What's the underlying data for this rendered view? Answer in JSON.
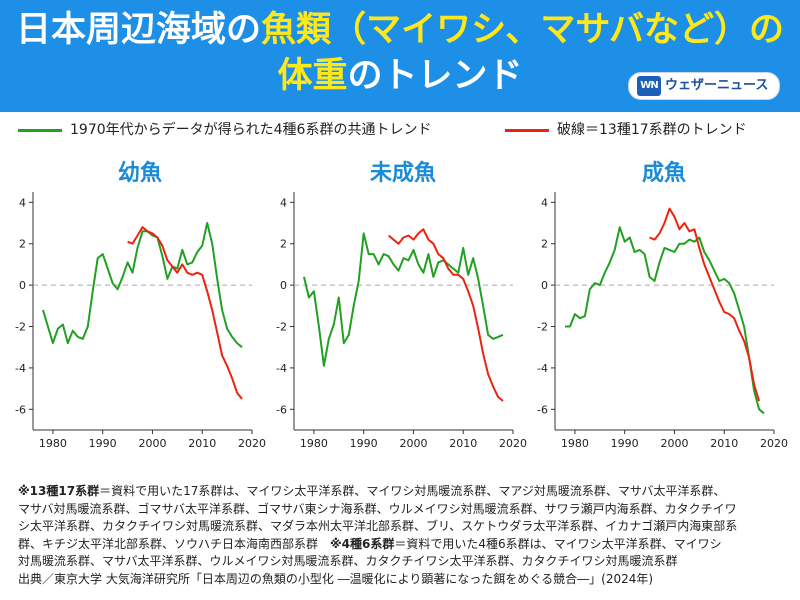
{
  "header": {
    "title_line1_part1": "日本周辺海域の",
    "title_line1_part2": "魚類",
    "title_line1_part3": "（マイワシ、マサバなど）の",
    "title_line2_part1": "体重",
    "title_line2_part2": "のトレンド",
    "logo_mark": "WN",
    "logo_text": "ウェザーニュース"
  },
  "legend": {
    "green_label": "1970年代からデータが得られた4種6系群の共通トレンド",
    "red_label": "破線＝13種17系群のトレンド"
  },
  "colors": {
    "header_bg": "#1e8fe6",
    "title_highlight": "#ffe81a",
    "chart_title": "#1a8ad9",
    "green": "#22a022",
    "red": "#ee2211",
    "zero_line": "#aaaaaa"
  },
  "chart_data": [
    {
      "type": "line",
      "title": "幼魚",
      "xlim": [
        1976,
        2020
      ],
      "ylim": [
        -7,
        4.5
      ],
      "xticks": [
        "1980",
        "1990",
        "2000",
        "2010",
        "2020"
      ],
      "yticks": [
        "4",
        "2",
        "0",
        "-2",
        "-4",
        "-6"
      ],
      "zero_line": "dashed",
      "series": [
        {
          "color": "green",
          "x": [
            1978,
            1979,
            1980,
            1981,
            1982,
            1983,
            1984,
            1985,
            1986,
            1987,
            1988,
            1989,
            1990,
            1991,
            1992,
            1993,
            1994,
            1995,
            1996,
            1997,
            1998,
            1999,
            2000,
            2001,
            2002,
            2003,
            2004,
            2005,
            2006,
            2007,
            2008,
            2009,
            2010,
            2011,
            2012,
            2013,
            2014,
            2015,
            2016,
            2017,
            2018
          ],
          "y": [
            -1.2,
            -2.0,
            -2.8,
            -2.1,
            -1.9,
            -2.8,
            -2.2,
            -2.5,
            -2.6,
            -2.0,
            -0.3,
            1.3,
            1.5,
            0.8,
            0.1,
            -0.2,
            0.4,
            1.1,
            0.6,
            1.8,
            2.6,
            2.6,
            2.4,
            2.3,
            1.4,
            0.3,
            0.9,
            0.8,
            1.7,
            1.0,
            1.1,
            1.6,
            1.9,
            3.0,
            2.0,
            0.3,
            -1.2,
            -2.1,
            -2.5,
            -2.8,
            -3.0
          ]
        },
        {
          "color": "red",
          "x": [
            1995,
            1996,
            1997,
            1998,
            1999,
            2000,
            2001,
            2002,
            2003,
            2004,
            2005,
            2006,
            2007,
            2008,
            2009,
            2010,
            2011,
            2012,
            2013,
            2014,
            2015,
            2016,
            2017,
            2018
          ],
          "y": [
            2.1,
            2.0,
            2.4,
            2.8,
            2.6,
            2.5,
            2.3,
            1.9,
            1.2,
            0.9,
            0.6,
            1.0,
            0.6,
            0.5,
            0.6,
            0.5,
            -0.3,
            -1.2,
            -2.3,
            -3.4,
            -3.9,
            -4.5,
            -5.2,
            -5.5
          ]
        }
      ]
    },
    {
      "type": "line",
      "title": "未成魚",
      "xlim": [
        1976,
        2020
      ],
      "ylim": [
        -7,
        4.5
      ],
      "xticks": [
        "1980",
        "1990",
        "2000",
        "2010",
        "2020"
      ],
      "yticks": [
        "4",
        "2",
        "0",
        "-2",
        "-4",
        "-6"
      ],
      "zero_line": "dashed",
      "series": [
        {
          "color": "green",
          "x": [
            1978,
            1979,
            1980,
            1981,
            1982,
            1983,
            1984,
            1985,
            1986,
            1987,
            1988,
            1989,
            1990,
            1991,
            1992,
            1993,
            1994,
            1995,
            1996,
            1997,
            1998,
            1999,
            2000,
            2001,
            2002,
            2003,
            2004,
            2005,
            2006,
            2007,
            2008,
            2009,
            2010,
            2011,
            2012,
            2013,
            2014,
            2015,
            2016,
            2017,
            2018
          ],
          "y": [
            0.4,
            -0.6,
            -0.3,
            -2.0,
            -3.9,
            -2.6,
            -1.9,
            -0.6,
            -2.8,
            -2.4,
            -1.0,
            0.2,
            2.5,
            1.5,
            1.5,
            1.0,
            1.5,
            1.4,
            1.0,
            0.7,
            1.3,
            1.2,
            1.7,
            1.0,
            0.6,
            1.5,
            0.4,
            1.1,
            1.2,
            1.0,
            0.8,
            0.6,
            1.8,
            0.5,
            1.3,
            0.3,
            -1.0,
            -2.4,
            -2.6,
            -2.5,
            -2.4
          ]
        },
        {
          "color": "red",
          "x": [
            1995,
            1996,
            1997,
            1998,
            1999,
            2000,
            2001,
            2002,
            2003,
            2004,
            2005,
            2006,
            2007,
            2008,
            2009,
            2010,
            2011,
            2012,
            2013,
            2014,
            2015,
            2016,
            2017,
            2018
          ],
          "y": [
            2.4,
            2.2,
            2.0,
            2.3,
            2.4,
            2.2,
            2.5,
            2.7,
            2.2,
            2.0,
            1.5,
            1.3,
            0.8,
            0.5,
            0.5,
            0.3,
            -0.3,
            -1.0,
            -2.1,
            -3.3,
            -4.3,
            -4.9,
            -5.4,
            -5.6
          ]
        }
      ]
    },
    {
      "type": "line",
      "title": "成魚",
      "xlim": [
        1976,
        2020
      ],
      "ylim": [
        -7,
        4.5
      ],
      "xticks": [
        "1980",
        "1990",
        "2000",
        "2010",
        "2020"
      ],
      "yticks": [
        "4",
        "2",
        "0",
        "-2",
        "-4",
        "-6"
      ],
      "zero_line": "dashed",
      "series": [
        {
          "color": "green",
          "x": [
            1978,
            1979,
            1980,
            1981,
            1982,
            1983,
            1984,
            1985,
            1986,
            1987,
            1988,
            1989,
            1990,
            1991,
            1992,
            1993,
            1994,
            1995,
            1996,
            1997,
            1998,
            1999,
            2000,
            2001,
            2002,
            2003,
            2004,
            2005,
            2006,
            2007,
            2008,
            2009,
            2010,
            2011,
            2012,
            2013,
            2014,
            2015,
            2016,
            2017,
            2018
          ],
          "y": [
            -2.0,
            -2.0,
            -1.4,
            -1.6,
            -1.5,
            -0.2,
            0.1,
            0.0,
            0.6,
            1.1,
            1.7,
            2.8,
            2.1,
            2.3,
            1.6,
            1.7,
            1.5,
            0.4,
            0.2,
            1.1,
            1.8,
            1.7,
            1.6,
            2.0,
            2.0,
            2.2,
            2.1,
            2.3,
            1.6,
            1.2,
            0.7,
            0.2,
            0.3,
            0.1,
            -0.4,
            -1.2,
            -2.0,
            -3.5,
            -5.1,
            -6.0,
            -6.2
          ]
        },
        {
          "color": "red",
          "x": [
            1995,
            1996,
            1997,
            1998,
            1999,
            2000,
            2001,
            2002,
            2003,
            2004,
            2005,
            2006,
            2007,
            2008,
            2009,
            2010,
            2011,
            2012,
            2013,
            2014,
            2015,
            2016,
            2017
          ],
          "y": [
            2.3,
            2.2,
            2.5,
            3.0,
            3.7,
            3.3,
            2.7,
            3.0,
            2.6,
            2.7,
            1.8,
            1.0,
            0.4,
            -0.2,
            -0.8,
            -1.3,
            -1.4,
            -1.6,
            -2.2,
            -2.7,
            -3.5,
            -4.8,
            -5.6
          ]
        }
      ]
    }
  ],
  "footnote": {
    "line1_bold": "※13種17系群",
    "line1_text": "＝資料で用いた17系群は、マイワシ太平洋系群、マイワシ対馬暖流系群、マアジ対馬暖流系群、マサバ太平洋系群、",
    "line2": "マサバ対馬暖流系群、ゴマサバ太平洋系群、ゴマサバ東シナ海系群、ウルメイワシ対馬暖流系群、サワラ瀬戸内海系群、カタクチイワ",
    "line3": "シ太平洋系群、カタクチイワシ対馬暖流系群、マダラ本州太平洋北部系群、ブリ、スケトウダラ太平洋系群、イカナゴ瀬戸内海東部系",
    "line4_text": "群、キチジ太平洋北部系群、ソウハチ日本海南西部系群　",
    "line4_bold": "※4種6系群",
    "line4_text2": "＝資料で用いた4種6系群は、マイワシ太平洋系群、マイワシ",
    "line5": "対馬暖流系群、マサバ太平洋系群、ウルメイワシ対馬暖流系群、カタクチイワシ太平洋系群、カタクチイワシ対馬暖流系群",
    "line6": "出典／東京大学 大気海洋研究所「日本周辺の魚類の小型化 ―温暖化により顕著になった餌をめぐる競合―」(2024年)"
  }
}
